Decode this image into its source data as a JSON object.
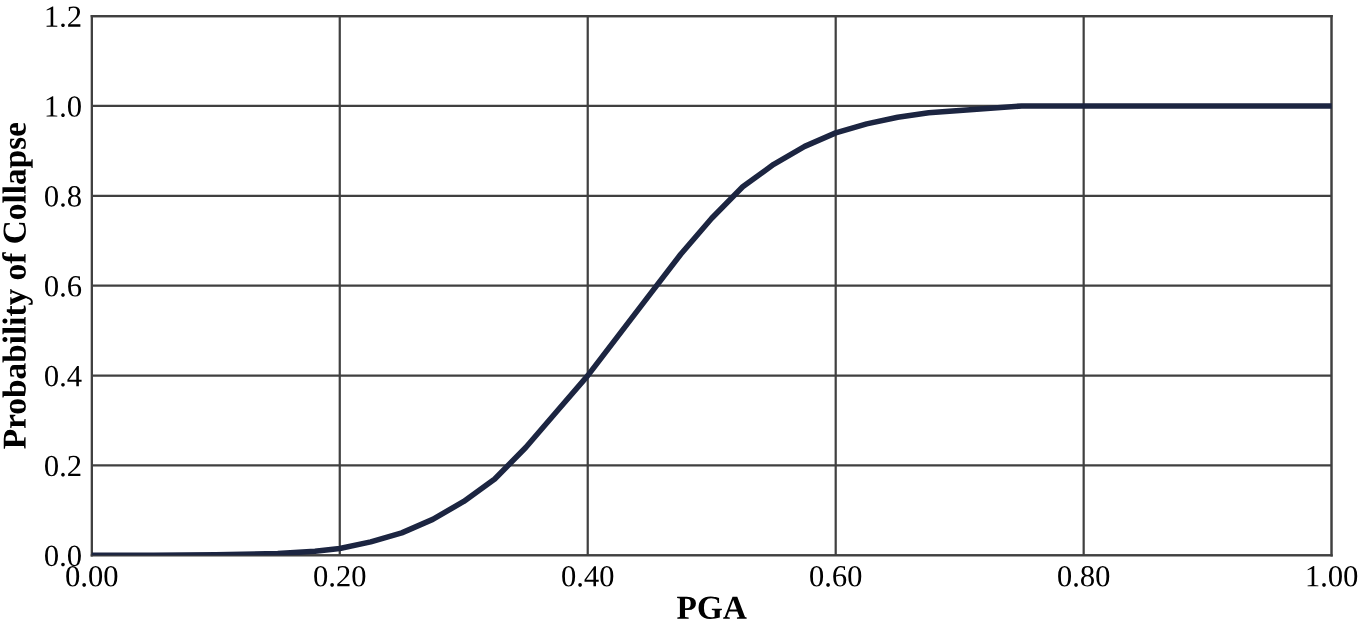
{
  "chart_data": {
    "type": "line",
    "xlabel": "PGA",
    "ylabel": "Probability of Collapse",
    "series": [
      {
        "color": "#1c2541",
        "x": [
          0.0,
          0.05,
          0.1,
          0.15,
          0.18,
          0.2,
          0.225,
          0.25,
          0.275,
          0.3,
          0.325,
          0.35,
          0.375,
          0.4,
          0.425,
          0.45,
          0.475,
          0.5,
          0.525,
          0.55,
          0.575,
          0.6,
          0.625,
          0.65,
          0.675,
          0.7,
          0.75,
          0.8,
          0.9,
          1.0
        ],
        "values": [
          0.0,
          0.0,
          0.001,
          0.004,
          0.009,
          0.015,
          0.03,
          0.05,
          0.08,
          0.12,
          0.17,
          0.24,
          0.32,
          0.4,
          0.49,
          0.58,
          0.67,
          0.75,
          0.82,
          0.87,
          0.91,
          0.94,
          0.96,
          0.975,
          0.985,
          0.99,
          1.0,
          1.0,
          1.0,
          1.0
        ]
      }
    ],
    "xlim": [
      0.0,
      1.0
    ],
    "ylim": [
      0.0,
      1.2
    ],
    "xticks": [
      {
        "value": 0,
        "label": "0.00"
      },
      {
        "value": 0.2,
        "label": "0.20"
      },
      {
        "value": 0.4,
        "label": "0.40"
      },
      {
        "value": 0.6,
        "label": "0.60"
      },
      {
        "value": 0.8,
        "label": "0.80"
      },
      {
        "value": 1,
        "label": "1.00"
      }
    ],
    "yticks": [
      {
        "value": 0,
        "label": "0.0"
      },
      {
        "value": 0.2,
        "label": "0.2"
      },
      {
        "value": 0.4,
        "label": "0.4"
      },
      {
        "value": 0.6,
        "label": "0.6"
      },
      {
        "value": 0.8,
        "label": "0.8"
      },
      {
        "value": 1,
        "label": "1.0"
      },
      {
        "value": 1.2,
        "label": "1.2"
      }
    ],
    "grid": true,
    "legend": false,
    "marker": "none",
    "line_style": "solid"
  }
}
